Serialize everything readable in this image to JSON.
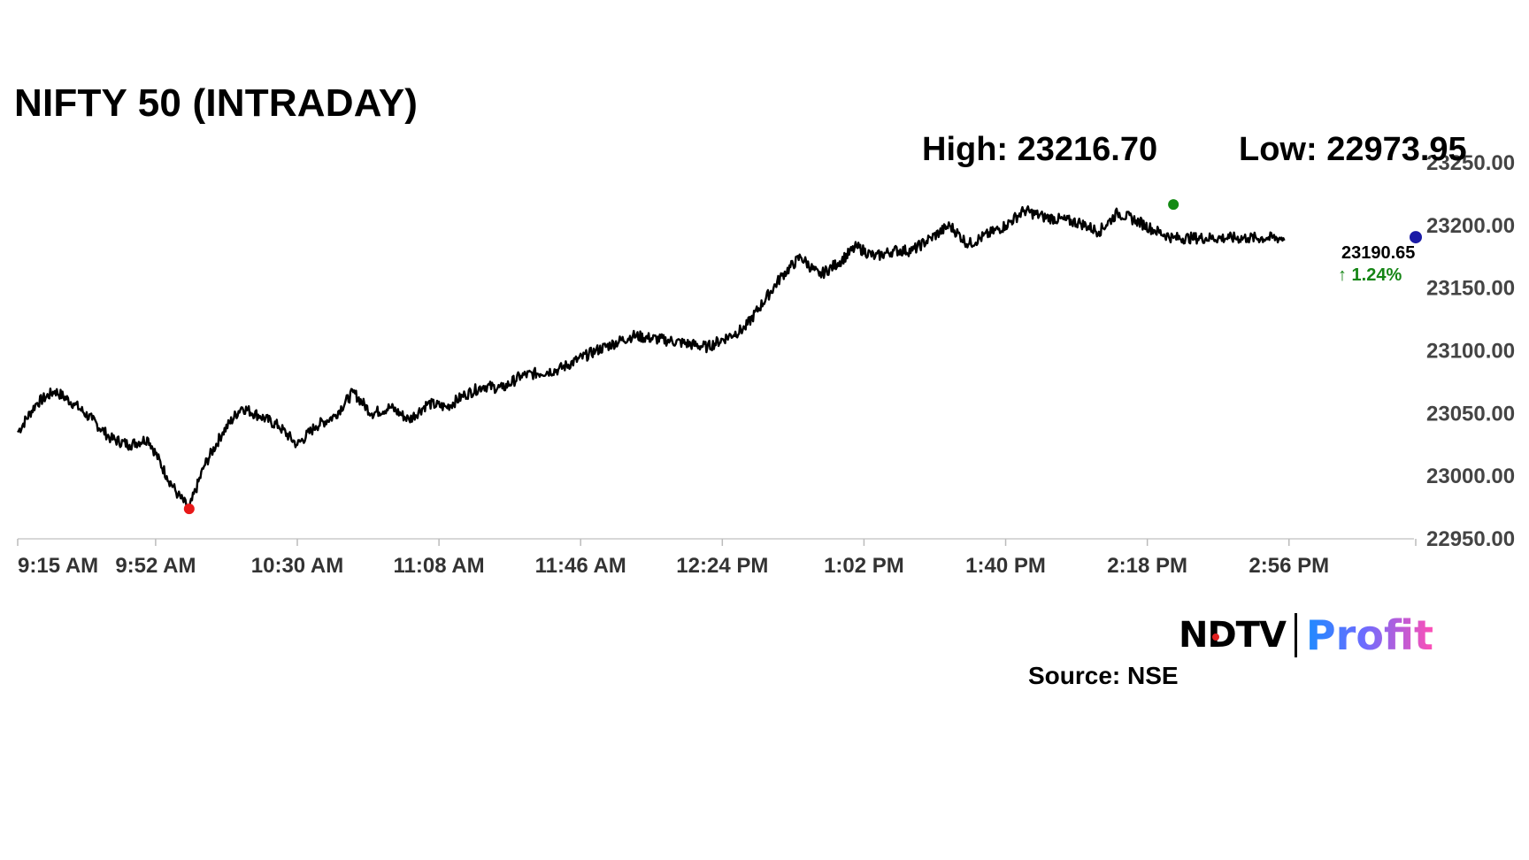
{
  "title": "NIFTY 50 (INTRADAY)",
  "high_label": "High: 23216.70",
  "low_label": "Low: 22973.95",
  "last_value": "23190.65",
  "change": "↑ 1.24%",
  "source": "Source: NSE",
  "logo": {
    "left": "NDTV",
    "right": "Profit"
  },
  "colors": {
    "line": "#000000",
    "high_marker": "#138a13",
    "low_marker": "#e81818",
    "last_marker": "#1a1aa6",
    "change": "#158515",
    "axis": "#cccccc"
  },
  "chart_data": {
    "type": "line",
    "title": "NIFTY 50 (INTRADAY)",
    "xlabel": "",
    "ylabel": "",
    "ylim": [
      22950,
      23250
    ],
    "xlim": [
      "9:15",
      "15:30"
    ],
    "x_tick_labels": [
      "9:15 AM",
      "9:52 AM",
      "10:30 AM",
      "11:08 AM",
      "11:46 AM",
      "12:24 PM",
      "1:02 PM",
      "1:40 PM",
      "2:18 PM",
      "2:56 PM"
    ],
    "y_tick_labels": [
      "22950.00",
      "23000.00",
      "23050.00",
      "23100.00",
      "23150.00",
      "23200.00",
      "23250.00"
    ],
    "high": {
      "time": "14:25",
      "value": 23216.7
    },
    "low": {
      "time": "10:01",
      "value": 22973.95
    },
    "last": {
      "time": "15:30",
      "value": 23190.65,
      "change_pct": 1.24
    },
    "grid": false,
    "series": [
      {
        "x": [
          "9:15",
          "9:20",
          "9:25",
          "9:30",
          "9:35",
          "9:40",
          "9:45",
          "9:50",
          "9:55",
          "9:58",
          "10:01",
          "10:05",
          "10:10",
          "10:15",
          "10:20",
          "10:25",
          "10:30",
          "10:35",
          "10:40",
          "10:45",
          "10:50",
          "10:55",
          "11:00",
          "11:05",
          "11:10",
          "11:15",
          "11:20",
          "11:25",
          "11:30",
          "11:40",
          "11:50",
          "12:00",
          "12:10",
          "12:20",
          "12:30",
          "12:40",
          "12:45",
          "12:50",
          "12:55",
          "13:00",
          "13:05",
          "13:10",
          "13:15",
          "13:20",
          "13:25",
          "13:30",
          "13:40",
          "13:45",
          "13:50",
          "14:00",
          "14:05",
          "14:10",
          "14:15",
          "14:20",
          "14:25",
          "14:30",
          "14:35",
          "14:40",
          "14:45",
          "14:50",
          "14:55",
          "15:00",
          "15:05",
          "15:10",
          "15:15",
          "15:20",
          "15:25",
          "15:30"
        ],
        "values": [
          23035,
          23058,
          23068,
          23058,
          23045,
          23030,
          23025,
          23030,
          23000,
          22985,
          22974,
          23008,
          23035,
          23055,
          23048,
          23040,
          23025,
          23040,
          23048,
          23067,
          23050,
          23055,
          23045,
          23058,
          23055,
          23065,
          23072,
          23070,
          23080,
          23085,
          23100,
          23112,
          23108,
          23103,
          23118,
          23160,
          23175,
          23160,
          23170,
          23183,
          23175,
          23180,
          23180,
          23190,
          23200,
          23185,
          23200,
          23212,
          23207,
          23202,
          23195,
          23210,
          23204,
          23196,
          23190,
          23190,
          23190,
          23190,
          23190,
          23190,
          23190,
          23190,
          23190,
          23190,
          23190,
          23190,
          23190,
          23190.65
        ]
      }
    ]
  }
}
